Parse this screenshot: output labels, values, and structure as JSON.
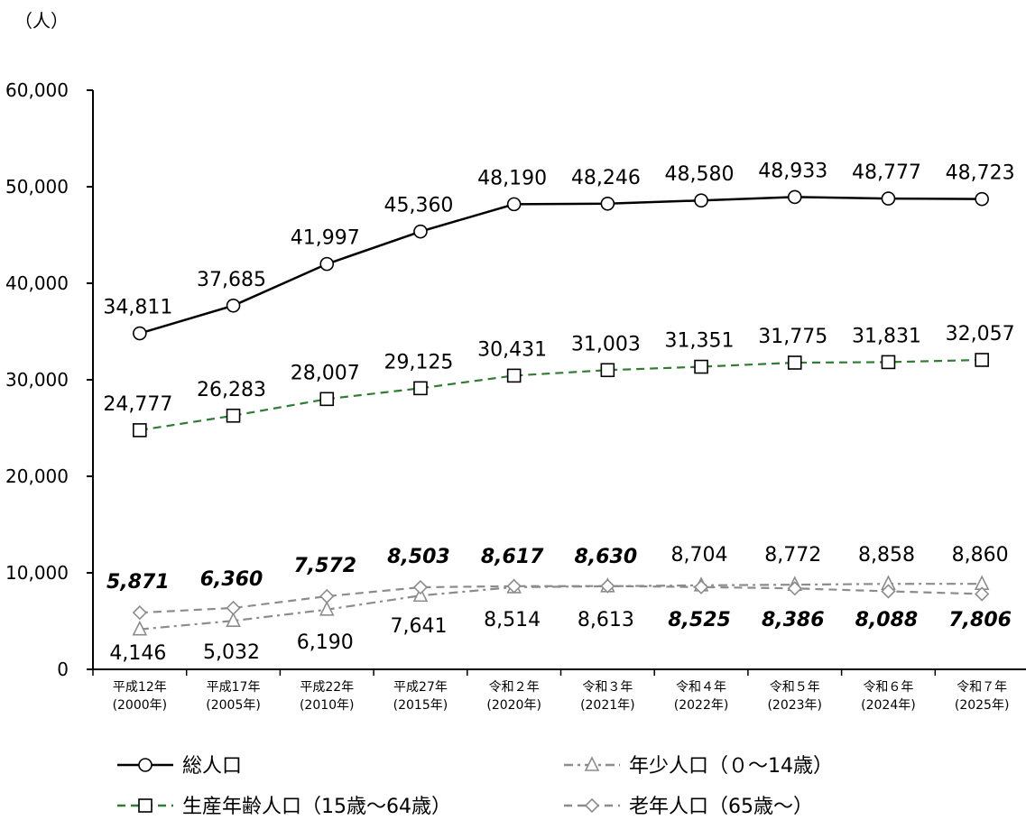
{
  "chart_data": {
    "type": "line",
    "unit_label": "（人）",
    "y_ticks": [
      "0",
      "10,000",
      "20,000",
      "30,000",
      "40,000",
      "50,000",
      "60,000"
    ],
    "ylim": [
      0,
      60000
    ],
    "x_labels": [
      {
        "era": "平成12年",
        "year": "(2000年)"
      },
      {
        "era": "平成17年",
        "year": "(2005年)"
      },
      {
        "era": "平成22年",
        "year": "(2010年)"
      },
      {
        "era": "平成27年",
        "year": "(2015年)"
      },
      {
        "era": "令和２年",
        "year": "(2020年)"
      },
      {
        "era": "令和３年",
        "year": "(2021年)"
      },
      {
        "era": "令和４年",
        "year": "(2022年)"
      },
      {
        "era": "令和５年",
        "year": "(2023年)"
      },
      {
        "era": "令和６年",
        "year": "(2024年)"
      },
      {
        "era": "令和７年",
        "year": "(2025年)"
      }
    ],
    "grid": false,
    "legend_position": "bottom",
    "series": [
      {
        "key": "total",
        "name": "総人口",
        "marker": "circle",
        "dash": "solid",
        "color": "#000000",
        "values": [
          34811,
          37685,
          41997,
          45360,
          48190,
          48246,
          48580,
          48933,
          48777,
          48723
        ],
        "labels": [
          "34,811",
          "37,685",
          "41,997",
          "45,360",
          "48,190",
          "48,246",
          "48,580",
          "48,933",
          "48,777",
          "48,723"
        ],
        "bold_labels": [
          false,
          false,
          false,
          false,
          false,
          false,
          false,
          false,
          false,
          false
        ]
      },
      {
        "key": "working",
        "name": "生産年齢人口（15歳～64歳）",
        "marker": "square",
        "dash": "dashed",
        "color": "#2e7d32",
        "values": [
          24777,
          26283,
          28007,
          29125,
          30431,
          31003,
          31351,
          31775,
          31831,
          32057
        ],
        "labels": [
          "24,777",
          "26,283",
          "28,007",
          "29,125",
          "30,431",
          "31,003",
          "31,351",
          "31,775",
          "31,831",
          "32,057"
        ],
        "bold_labels": [
          false,
          false,
          false,
          false,
          false,
          false,
          false,
          false,
          false,
          false
        ]
      },
      {
        "key": "youth",
        "name": "年少人口（０～14歳）",
        "marker": "triangle",
        "dash": "dashdot",
        "color": "#8c8c8c",
        "values": [
          4146,
          5032,
          6190,
          7641,
          8514,
          8613,
          8704,
          8772,
          8858,
          8860
        ],
        "labels": [
          "4,146",
          "5,032",
          "6,190",
          "7,641",
          "8,514",
          "8,613",
          "8,704",
          "8,772",
          "8,858",
          "8,860"
        ],
        "bold_labels": [
          false,
          false,
          false,
          false,
          false,
          false,
          false,
          false,
          false,
          false
        ]
      },
      {
        "key": "elderly",
        "name": "老年人口（65歳～）",
        "marker": "diamond",
        "dash": "dashed",
        "color": "#8c8c8c",
        "values": [
          5871,
          6360,
          7572,
          8503,
          8617,
          8630,
          8525,
          8386,
          8088,
          7806
        ],
        "labels": [
          "5,871",
          "6,360",
          "7,572",
          "8,503",
          "8,617",
          "8,630",
          "8,525",
          "8,386",
          "8,088",
          "7,806"
        ],
        "bold_labels": [
          true,
          true,
          true,
          true,
          true,
          true,
          true,
          true,
          true,
          true
        ]
      }
    ]
  }
}
